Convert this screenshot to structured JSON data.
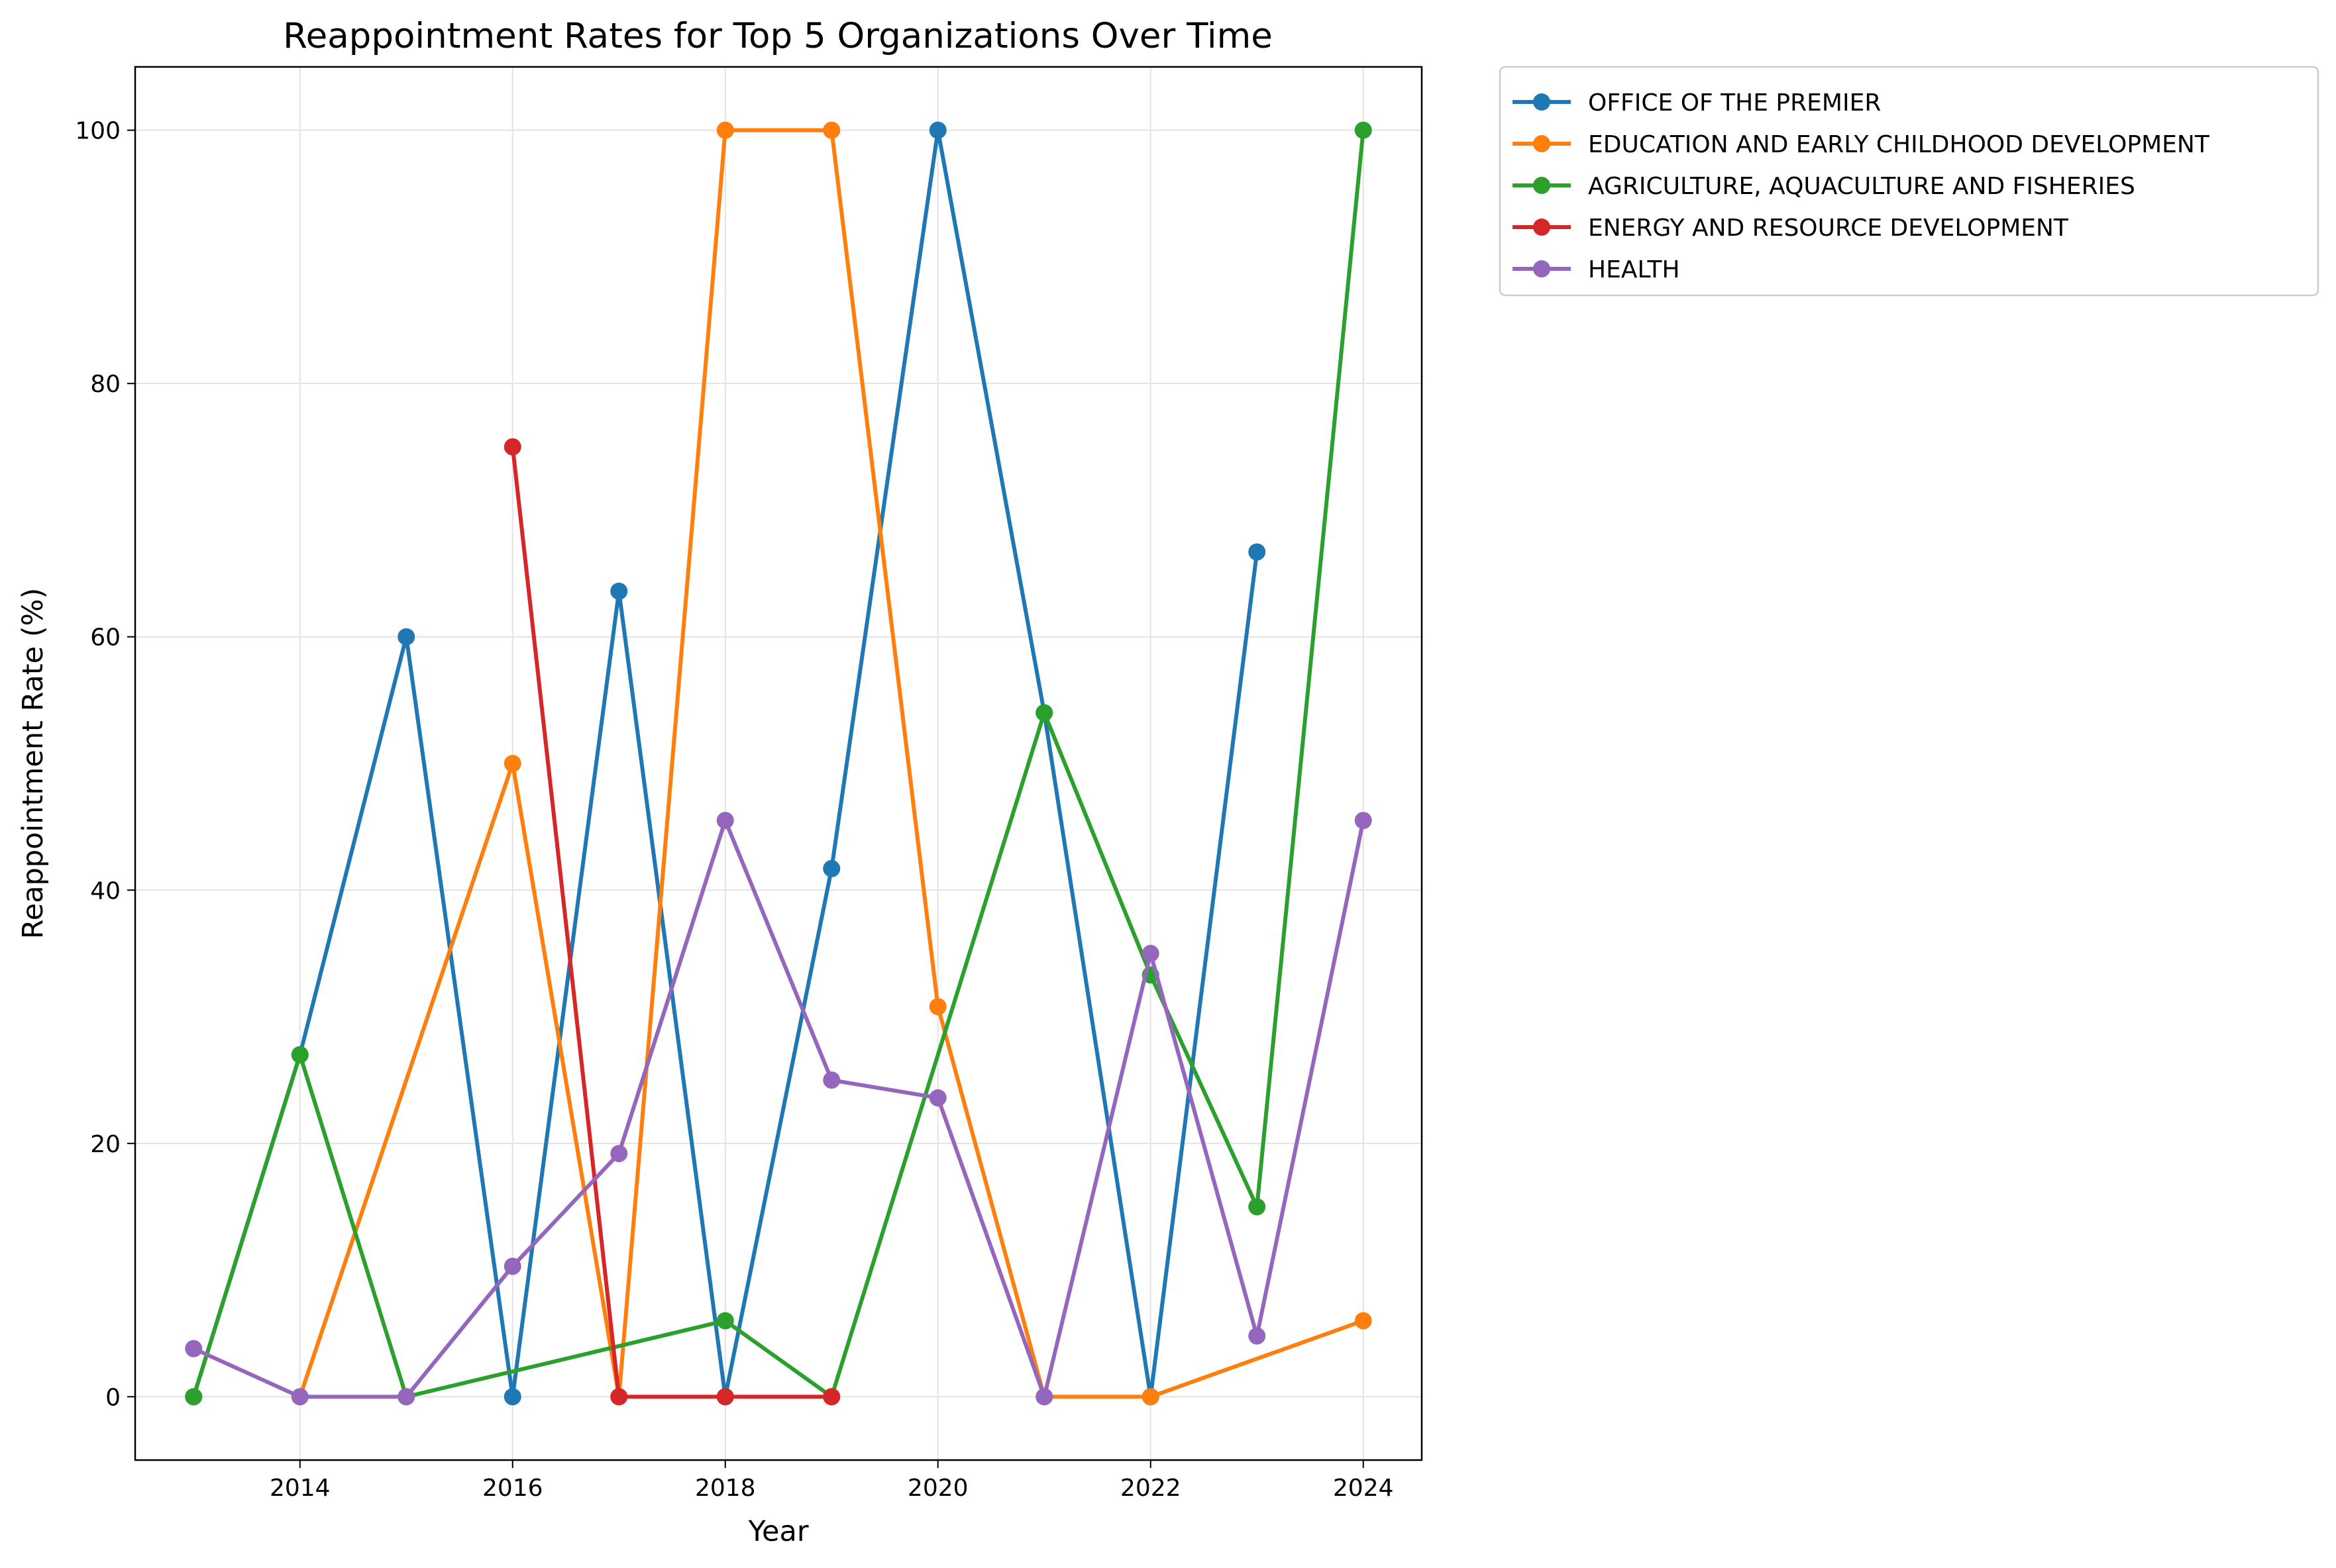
{
  "chart_data": {
    "type": "line",
    "title": "Reappointment Rates for Top 5 Organizations Over Time",
    "xlabel": "Year",
    "ylabel": "Reappointment Rate (%)",
    "xlim": [
      2012.45,
      2024.55
    ],
    "ylim": [
      -5,
      105
    ],
    "xticks": [
      2014,
      2016,
      2018,
      2020,
      2022,
      2024
    ],
    "yticks": [
      0,
      20,
      40,
      60,
      80,
      100
    ],
    "grid": true,
    "legend_position": "outside-top-right",
    "series": [
      {
        "name": "OFFICE OF THE PREMIER",
        "color": "#1f77b4",
        "points": [
          [
            2013,
            0
          ],
          [
            2014,
            27
          ],
          [
            2015,
            60
          ],
          [
            2016,
            0
          ],
          [
            2017,
            63.6
          ],
          [
            2018,
            0
          ],
          [
            2019,
            41.7
          ],
          [
            2020,
            100
          ],
          [
            2021,
            54
          ],
          [
            2022,
            0
          ],
          [
            2023,
            66.7
          ]
        ]
      },
      {
        "name": "EDUCATION AND EARLY CHILDHOOD DEVELOPMENT",
        "color": "#ff7f0e",
        "points": [
          [
            2014,
            0
          ],
          [
            2016,
            50
          ],
          [
            2017,
            0
          ],
          [
            2018,
            100
          ],
          [
            2019,
            100
          ],
          [
            2020,
            30.8
          ],
          [
            2021,
            0
          ],
          [
            2022,
            0
          ],
          [
            2024,
            6
          ]
        ]
      },
      {
        "name": "AGRICULTURE, AQUACULTURE AND FISHERIES",
        "color": "#2ca02c",
        "points": [
          [
            2013,
            0
          ],
          [
            2014,
            27
          ],
          [
            2015,
            0
          ],
          [
            2018,
            6
          ],
          [
            2019,
            0
          ],
          [
            2021,
            54
          ],
          [
            2022,
            33.3
          ],
          [
            2023,
            15
          ],
          [
            2024,
            100
          ]
        ]
      },
      {
        "name": "ENERGY AND RESOURCE DEVELOPMENT",
        "color": "#d62728",
        "points": [
          [
            2016,
            75
          ],
          [
            2017,
            0
          ],
          [
            2018,
            0
          ],
          [
            2019,
            0
          ]
        ]
      },
      {
        "name": "HEALTH",
        "color": "#9467bd",
        "points": [
          [
            2013,
            3.8
          ],
          [
            2014,
            0
          ],
          [
            2015,
            0
          ],
          [
            2016,
            10.3
          ],
          [
            2017,
            19.2
          ],
          [
            2018,
            45.5
          ],
          [
            2019,
            25
          ],
          [
            2020,
            23.6
          ],
          [
            2021,
            0
          ],
          [
            2022,
            35
          ],
          [
            2023,
            4.8
          ],
          [
            2024,
            45.5
          ]
        ]
      }
    ]
  }
}
